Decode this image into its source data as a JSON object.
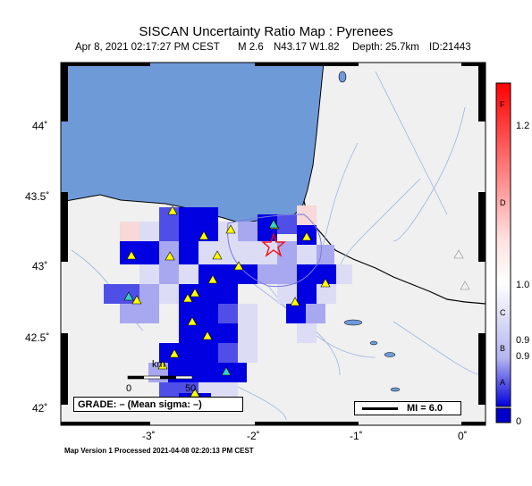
{
  "title": "SISCAN Uncertainty Ratio Map : Pyrenees",
  "subtitle": {
    "date": "Apr  8, 2021 02:17:27 PM CEST",
    "magnitude": "M 2.6",
    "location": "N43.17 W1.82",
    "depth": "Depth: 25.7km",
    "event_id": "ID:21443"
  },
  "axes": {
    "lat_labels": [
      "44˚",
      "43.5˚",
      "43˚",
      "42.5˚",
      "42˚"
    ],
    "lon_labels": [
      "-3˚",
      "-2˚",
      "-1˚",
      "0˚"
    ]
  },
  "colorbar": {
    "values": [
      "1.2",
      "1.0",
      "0.9",
      "0.9",
      "0"
    ],
    "letters": [
      "F",
      "D",
      "C",
      "B",
      "A"
    ],
    "top_color": "#ff0000",
    "bottom_color": "#0000cc"
  },
  "scale_bar": {
    "unit": "km",
    "start": "0",
    "end": "50"
  },
  "grade_text": "GRADE: – (Mean sigma: –)",
  "mi_label": "MI = 6.0",
  "footer": "Map Version 1 Processed 2021-04-08 02:20:13 PM CEST",
  "colors": {
    "sea": "#6f9ad8",
    "land": "#f0f0f0",
    "river": "#9bb5dd",
    "cell_strong": "#0000e0"
  }
}
